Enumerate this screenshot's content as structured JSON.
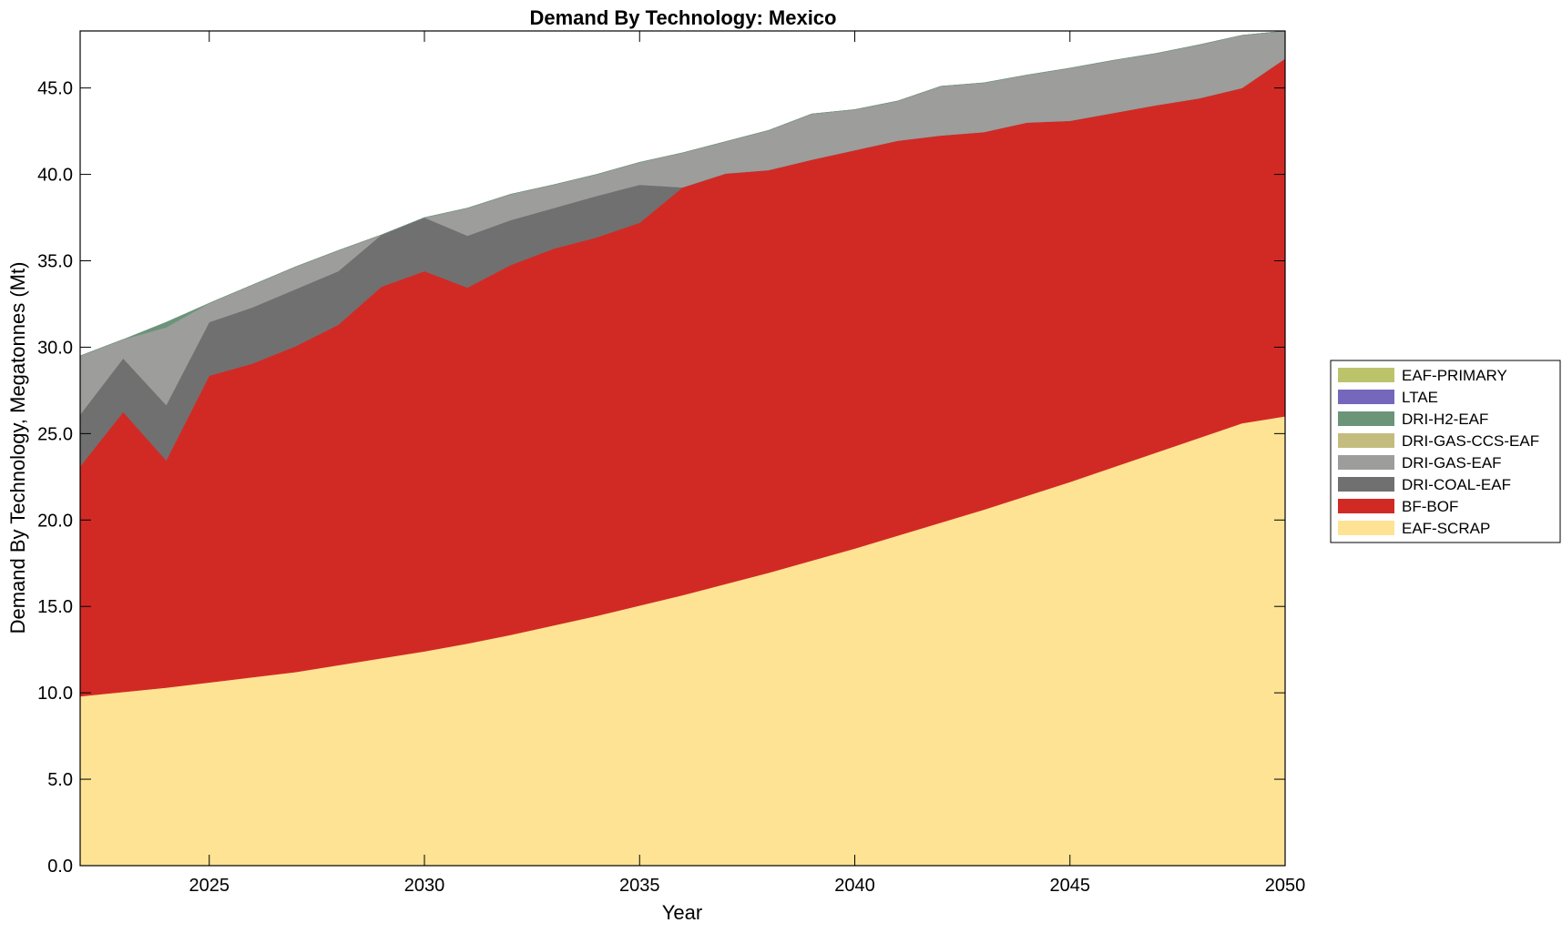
{
  "chart_data": {
    "type": "area",
    "stacked": true,
    "title": "Demand By Technology: Mexico",
    "xlabel": "Year",
    "ylabel": "Demand By Technology, Megatonnes (Mt)",
    "xlim": [
      2022,
      2050
    ],
    "ylim": [
      0,
      48.3
    ],
    "xticks": [
      2025,
      2030,
      2035,
      2040,
      2045,
      2050
    ],
    "yticks": [
      0,
      5,
      10,
      15,
      20,
      25,
      30,
      35,
      40,
      45
    ],
    "ytick_labels": [
      "0.0",
      "5.0",
      "10.0",
      "15.0",
      "20.0",
      "25.0",
      "30.0",
      "35.0",
      "40.0",
      "45.0"
    ],
    "grid": false,
    "legend_position": "right",
    "x": [
      2022,
      2023,
      2024,
      2025,
      2026,
      2027,
      2028,
      2029,
      2030,
      2031,
      2032,
      2033,
      2034,
      2035,
      2036,
      2037,
      2038,
      2039,
      2040,
      2041,
      2042,
      2043,
      2044,
      2045,
      2046,
      2047,
      2048,
      2049,
      2050
    ],
    "series": [
      {
        "name": "EAF-SCRAP",
        "color": "#fde393",
        "values": [
          9.8,
          10.05,
          10.3,
          10.6,
          10.9,
          11.2,
          11.6,
          12.0,
          12.4,
          12.85,
          13.35,
          13.9,
          14.45,
          15.05,
          15.65,
          16.3,
          16.95,
          17.65,
          18.35,
          19.1,
          19.85,
          20.6,
          21.4,
          22.2,
          23.05,
          23.9,
          24.75,
          25.6,
          26.0
        ]
      },
      {
        "name": "BF-BOF",
        "color": "#d12a25",
        "values": [
          13.3,
          16.2,
          13.15,
          17.75,
          18.15,
          18.85,
          19.7,
          21.5,
          22.0,
          20.6,
          21.4,
          21.8,
          21.9,
          22.15,
          23.6,
          23.75,
          23.3,
          23.2,
          23.05,
          22.85,
          22.4,
          21.85,
          21.6,
          20.9,
          20.5,
          20.1,
          19.65,
          19.4,
          20.7
        ]
      },
      {
        "name": "DRI-COAL-EAF",
        "color": "#707070",
        "values": [
          3.0,
          3.1,
          3.2,
          3.1,
          3.25,
          3.3,
          3.1,
          3.0,
          3.1,
          3.0,
          2.6,
          2.35,
          2.4,
          2.2,
          0.0,
          0.0,
          0.0,
          0.0,
          0.0,
          0.0,
          0.0,
          0.0,
          0.0,
          0.0,
          0.0,
          0.0,
          0.0,
          0.0,
          0.0
        ]
      },
      {
        "name": "DRI-GAS-EAF",
        "color": "#9d9d9b",
        "values": [
          3.4,
          1.1,
          4.5,
          1.1,
          1.3,
          1.3,
          1.2,
          0.0,
          0.0,
          1.6,
          1.5,
          1.35,
          1.25,
          1.3,
          2.0,
          1.85,
          2.3,
          2.65,
          2.35,
          2.3,
          2.85,
          2.85,
          2.75,
          3.05,
          3.05,
          3.0,
          3.1,
          3.05,
          1.6
        ]
      },
      {
        "name": "DRI-GAS-CCS-EAF",
        "color": "#c4bc7e",
        "values": [
          0,
          0,
          0,
          0,
          0,
          0,
          0,
          0,
          0,
          0,
          0,
          0,
          0,
          0,
          0,
          0,
          0,
          0,
          0,
          0,
          0,
          0,
          0,
          0,
          0,
          0,
          0,
          0,
          0
        ]
      },
      {
        "name": "DRI-H2-EAF",
        "color": "#6b9479",
        "values": [
          0.0,
          0.0,
          0.3,
          0.0,
          0.0,
          0.0,
          0.0,
          0.0,
          0.0,
          0.0,
          0.0,
          0.0,
          0.0,
          0.0,
          0.0,
          0.0,
          0.0,
          0.0,
          0.0,
          0.0,
          0.0,
          0.0,
          0.0,
          0.0,
          0.0,
          0.0,
          0.0,
          0.0,
          0.0
        ]
      },
      {
        "name": "LTAE",
        "color": "#7568bc",
        "values": [
          0,
          0,
          0,
          0,
          0,
          0,
          0,
          0,
          0,
          0,
          0,
          0,
          0,
          0,
          0,
          0,
          0,
          0,
          0,
          0,
          0,
          0,
          0,
          0,
          0,
          0,
          0,
          0,
          0
        ]
      },
      {
        "name": "EAF-PRIMARY",
        "color": "#bcc46b",
        "values": [
          0,
          0,
          0,
          0,
          0,
          0,
          0,
          0,
          0,
          0,
          0,
          0,
          0,
          0,
          0,
          0,
          0,
          0,
          0,
          0,
          0,
          0,
          0,
          0,
          0,
          0,
          0,
          0,
          0
        ]
      }
    ],
    "legend_order": [
      "EAF-PRIMARY",
      "LTAE",
      "DRI-H2-EAF",
      "DRI-GAS-CCS-EAF",
      "DRI-GAS-EAF",
      "DRI-COAL-EAF",
      "BF-BOF",
      "EAF-SCRAP"
    ]
  }
}
